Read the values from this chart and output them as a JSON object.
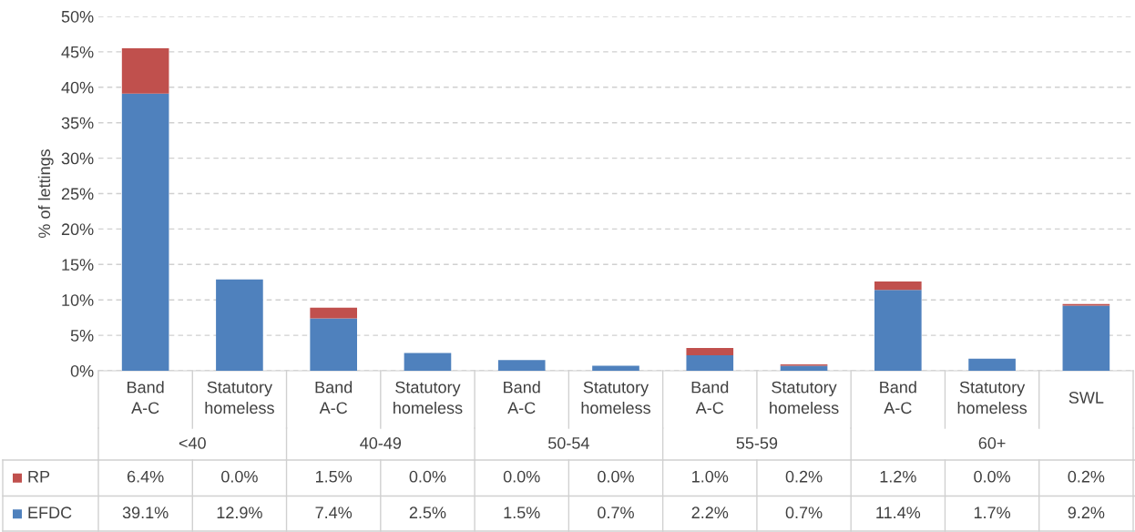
{
  "chart_data": {
    "type": "bar",
    "stacked": true,
    "ylabel": "% of lettings",
    "categories": [
      "Band\nA-C",
      "Statutory\nhomeless",
      "Band\nA-C",
      "Statutory\nhomeless",
      "Band\nA-C",
      "Statutory\nhomeless",
      "Band\nA-C",
      "Statutory\nhomeless",
      "Band\nA-C",
      "Statutory\nhomeless",
      "SWL"
    ],
    "series": [
      {
        "name": "EFDC",
        "color": "#4f81bd",
        "values": [
          39.1,
          12.9,
          7.4,
          2.5,
          1.5,
          0.7,
          2.2,
          0.7,
          11.4,
          1.7,
          9.2
        ],
        "value_labels": [
          "39.1%",
          "12.9%",
          "7.4%",
          "2.5%",
          "1.5%",
          "0.7%",
          "2.2%",
          "0.7%",
          "11.4%",
          "1.7%",
          "9.2%"
        ]
      },
      {
        "name": "RP",
        "color": "#c0504d",
        "values": [
          6.4,
          0.0,
          1.5,
          0.0,
          0.0,
          0.0,
          1.0,
          0.2,
          1.2,
          0.0,
          0.2
        ],
        "value_labels": [
          "6.4%",
          "0.0%",
          "1.5%",
          "0.0%",
          "0.0%",
          "0.0%",
          "1.0%",
          "0.2%",
          "1.2%",
          "0.0%",
          "0.2%"
        ]
      }
    ],
    "annotations": [
      "<40",
      "40-49",
      "50-54",
      "55-59",
      "60+"
    ],
    "ylim": [
      0,
      50
    ],
    "yticks": [
      {
        "value": 0,
        "label": "0%"
      },
      {
        "value": 5,
        "label": "5%"
      },
      {
        "value": 10,
        "label": "10%"
      },
      {
        "value": 15,
        "label": "15%"
      },
      {
        "value": 20,
        "label": "20%"
      },
      {
        "value": 25,
        "label": "25%"
      },
      {
        "value": 30,
        "label": "30%"
      },
      {
        "value": 35,
        "label": "35%"
      },
      {
        "value": 40,
        "label": "40%"
      },
      {
        "value": 45,
        "label": "45%"
      },
      {
        "value": 50,
        "label": "50%"
      }
    ],
    "grid": "y",
    "legend": "bottom"
  }
}
